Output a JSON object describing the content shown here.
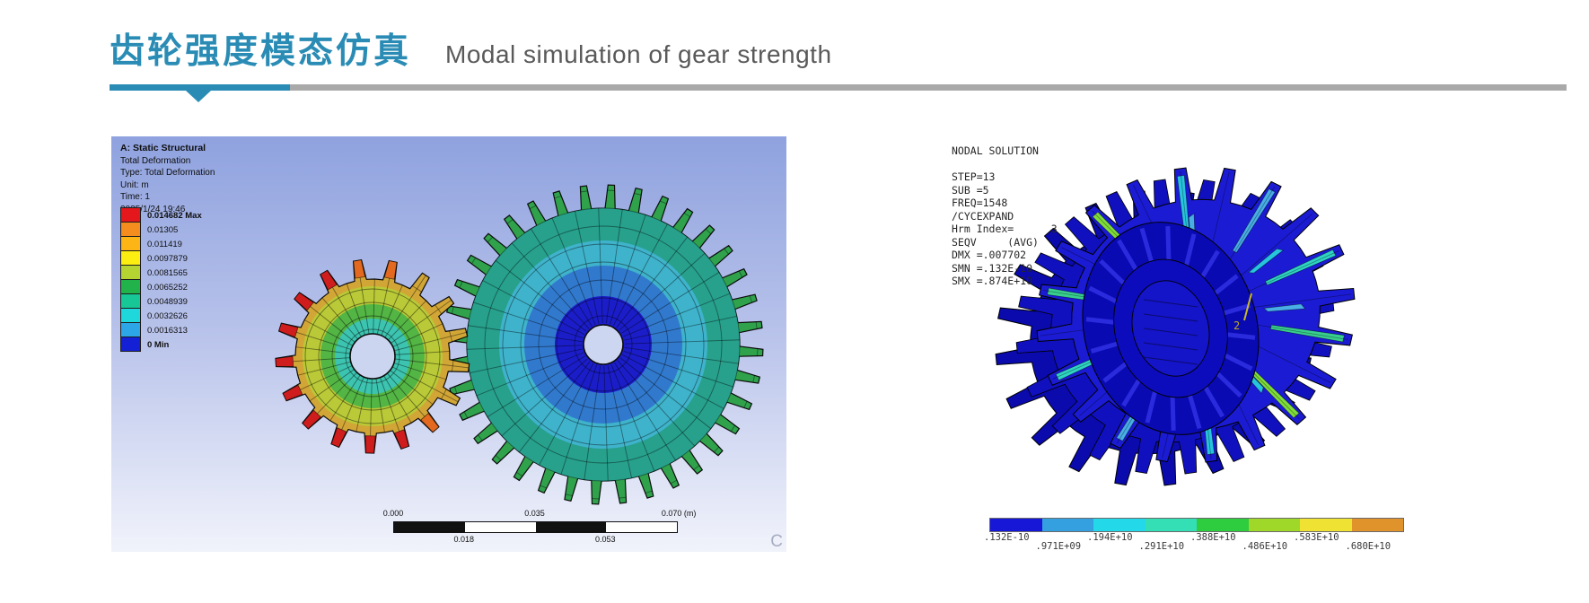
{
  "header": {
    "title_zh": "齿轮强度模态仿真",
    "title_en": "Modal simulation of gear strength"
  },
  "colors": {
    "accent": "#2a8cb5",
    "rule_gray": "#a9a9a9"
  },
  "left_image": {
    "info_title": "A: Static Structural",
    "info_lines": [
      "Total Deformation",
      "Type: Total Deformation",
      "Unit: m",
      "Time: 1",
      "2025/1/24 19:46"
    ],
    "legend": [
      {
        "label": "0.014682 Max",
        "color": "#e3171c"
      },
      {
        "label": "0.01305",
        "color": "#f58c1e"
      },
      {
        "label": "0.011419",
        "color": "#fcb514"
      },
      {
        "label": "0.0097879",
        "color": "#fdee11"
      },
      {
        "label": "0.0081565",
        "color": "#b6d431"
      },
      {
        "label": "0.0065252",
        "color": "#21b24b"
      },
      {
        "label": "0.0048939",
        "color": "#17c796"
      },
      {
        "label": "0.0032626",
        "color": "#1fd8dc"
      },
      {
        "label": "0.0016313",
        "color": "#2da6e8"
      },
      {
        "label": "0 Min",
        "color": "#1420d6"
      }
    ],
    "scalebar": {
      "top_labels": [
        "0.000",
        "0.035",
        "0.070 (m)"
      ],
      "bottom_labels": [
        "0.018",
        "0.053"
      ]
    },
    "corner_mark": "C"
  },
  "right_image": {
    "info_lines": [
      "NODAL SOLUTION",
      "",
      "STEP=13",
      "SUB =5",
      "FREQ=1548",
      "/CYCEXPAND",
      "Hrm Index=      3",
      "SEQV     (AVG)",
      "DMX =.007702",
      "SMN =.132E-10",
      "SMX =.874E+10"
    ],
    "annotation": "2",
    "colorbar": {
      "colors": [
        "#1717d8",
        "#35a0e0",
        "#23d8e8",
        "#35dfb5",
        "#2ecc3f",
        "#a0d829",
        "#f0e232",
        "#e0922b"
      ],
      "labels_top": [
        ".132E-10",
        ".194E+10",
        ".388E+10",
        ".583E+10"
      ],
      "labels_bottom": [
        ".971E+09",
        ".291E+10",
        ".486E+10",
        ".680E+10"
      ]
    }
  }
}
